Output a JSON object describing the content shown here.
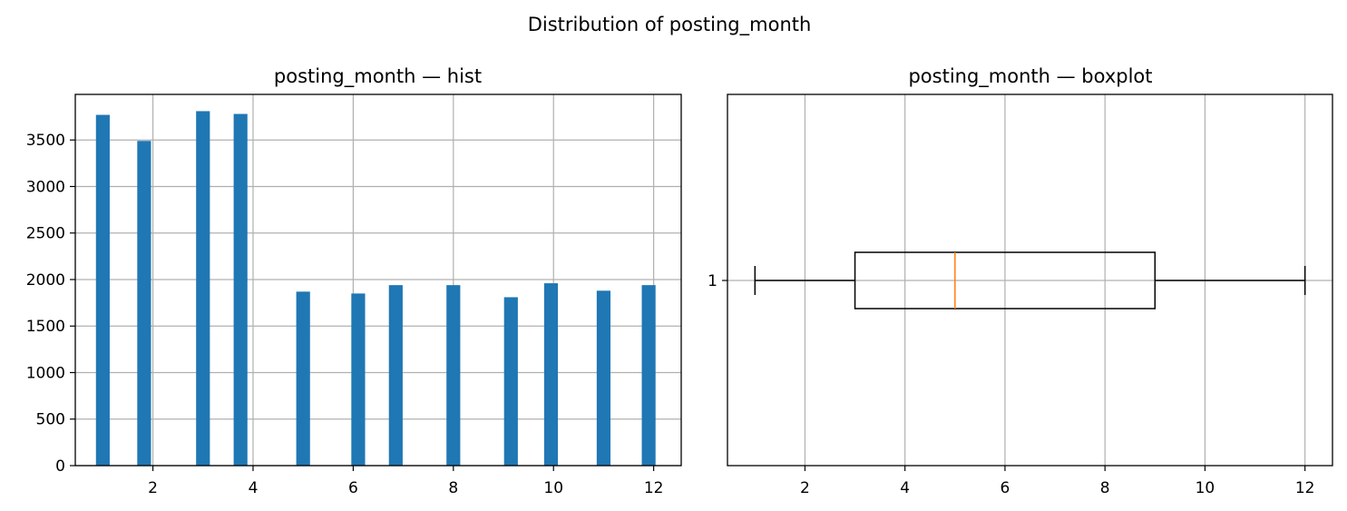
{
  "suptitle": "Distribution of posting_month",
  "chart_data": [
    {
      "type": "bar",
      "subtype": "histogram",
      "title": "posting_month — hist",
      "xlabel": "",
      "ylabel": "",
      "xlim": [
        0.45,
        12.55
      ],
      "ylim": [
        0,
        3990
      ],
      "xticks": [
        2,
        4,
        6,
        8,
        10,
        12
      ],
      "yticks": [
        0,
        500,
        1000,
        1500,
        2000,
        2500,
        3000,
        3500
      ],
      "grid": true,
      "bar_color": "#1f77b4",
      "bin_width": 0.275,
      "bins": [
        {
          "x": 1.0,
          "value": 3770
        },
        {
          "x": 1.825,
          "value": 3490
        },
        {
          "x": 3.0,
          "value": 3810
        },
        {
          "x": 3.75,
          "value": 3780
        },
        {
          "x": 5.0,
          "value": 1870
        },
        {
          "x": 6.1,
          "value": 1850
        },
        {
          "x": 6.85,
          "value": 1940
        },
        {
          "x": 8.0,
          "value": 1940
        },
        {
          "x": 9.15,
          "value": 1810
        },
        {
          "x": 9.95,
          "value": 1960
        },
        {
          "x": 11.0,
          "value": 1880
        },
        {
          "x": 11.9,
          "value": 1940
        }
      ]
    },
    {
      "type": "boxplot",
      "title": "posting_month — boxplot",
      "orientation": "horizontal",
      "xlim": [
        0.45,
        12.55
      ],
      "xticks": [
        2,
        4,
        6,
        8,
        10,
        12
      ],
      "yticks": [
        1
      ],
      "grid": true,
      "median_color": "#ff7f0e",
      "box": {
        "label": "1",
        "whisker_low": 1,
        "q1": 3,
        "median": 5,
        "q3": 9,
        "whisker_high": 12
      }
    }
  ]
}
